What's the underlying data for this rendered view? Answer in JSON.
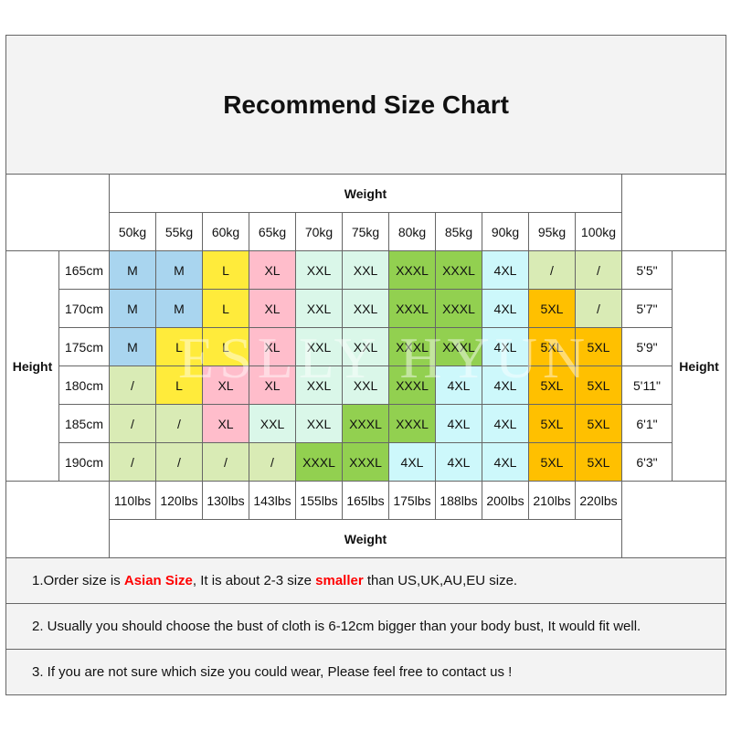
{
  "title": "Recommend Size Chart",
  "weight_label": "Weight",
  "height_label": "Height",
  "weights_kg": [
    "50kg",
    "55kg",
    "60kg",
    "65kg",
    "70kg",
    "75kg",
    "80kg",
    "85kg",
    "90kg",
    "95kg",
    "100kg"
  ],
  "weights_lbs": [
    "110lbs",
    "120lbs",
    "130lbs",
    "143lbs",
    "155lbs",
    "165lbs",
    "175lbs",
    "188lbs",
    "200lbs",
    "210lbs",
    "220lbs"
  ],
  "rows": [
    {
      "cm": "165cm",
      "ft": "5'5\"",
      "sizes": [
        "M",
        "M",
        "L",
        "XL",
        "XXL",
        "XXL",
        "XXXL",
        "XXXL",
        "4XL",
        "/",
        "/"
      ]
    },
    {
      "cm": "170cm",
      "ft": "5'7\"",
      "sizes": [
        "M",
        "M",
        "L",
        "XL",
        "XXL",
        "XXL",
        "XXXL",
        "XXXL",
        "4XL",
        "5XL",
        "/"
      ]
    },
    {
      "cm": "175cm",
      "ft": "5'9\"",
      "sizes": [
        "M",
        "L",
        "L",
        "XL",
        "XXL",
        "XXL",
        "XXXL",
        "XXXL",
        "4XL",
        "5XL",
        "5XL"
      ]
    },
    {
      "cm": "180cm",
      "ft": "5'11\"",
      "sizes": [
        "/",
        "L",
        "XL",
        "XL",
        "XXL",
        "XXL",
        "XXXL",
        "4XL",
        "4XL",
        "5XL",
        "5XL"
      ]
    },
    {
      "cm": "185cm",
      "ft": "6'1\"",
      "sizes": [
        "/",
        "/",
        "XL",
        "XXL",
        "XXL",
        "XXXL",
        "XXXL",
        "4XL",
        "4XL",
        "5XL",
        "5XL"
      ]
    },
    {
      "cm": "190cm",
      "ft": "6'3\"",
      "sizes": [
        "/",
        "/",
        "/",
        "/",
        "XXXL",
        "XXXL",
        "4XL",
        "4XL",
        "4XL",
        "5XL",
        "5XL"
      ]
    }
  ],
  "size_colors": {
    "M": "#a9d5ef",
    "L": "#ffeb3b",
    "XL": "#ffbdcb",
    "XXL": "#daf7e9",
    "XXXL": "#92d050",
    "4XL": "#cdf8fb",
    "5XL": "#ffc000",
    "/": "#d9ebb5"
  },
  "notes": [
    [
      {
        "t": "1.Order size is "
      },
      {
        "t": "Asian Size",
        "red": true
      },
      {
        "t": ", It is about 2-3 size "
      },
      {
        "t": "smaller",
        "red": true
      },
      {
        "t": " than US,UK,AU,EU size."
      }
    ],
    [
      {
        "t": "2. Usually you should choose the bust of cloth is 6-12cm bigger than your body bust, It would fit well."
      }
    ],
    [
      {
        "t": "3. If you are not sure which size you could wear, Please feel free to contact us !"
      }
    ]
  ],
  "watermark": "ESLLY HYUN"
}
